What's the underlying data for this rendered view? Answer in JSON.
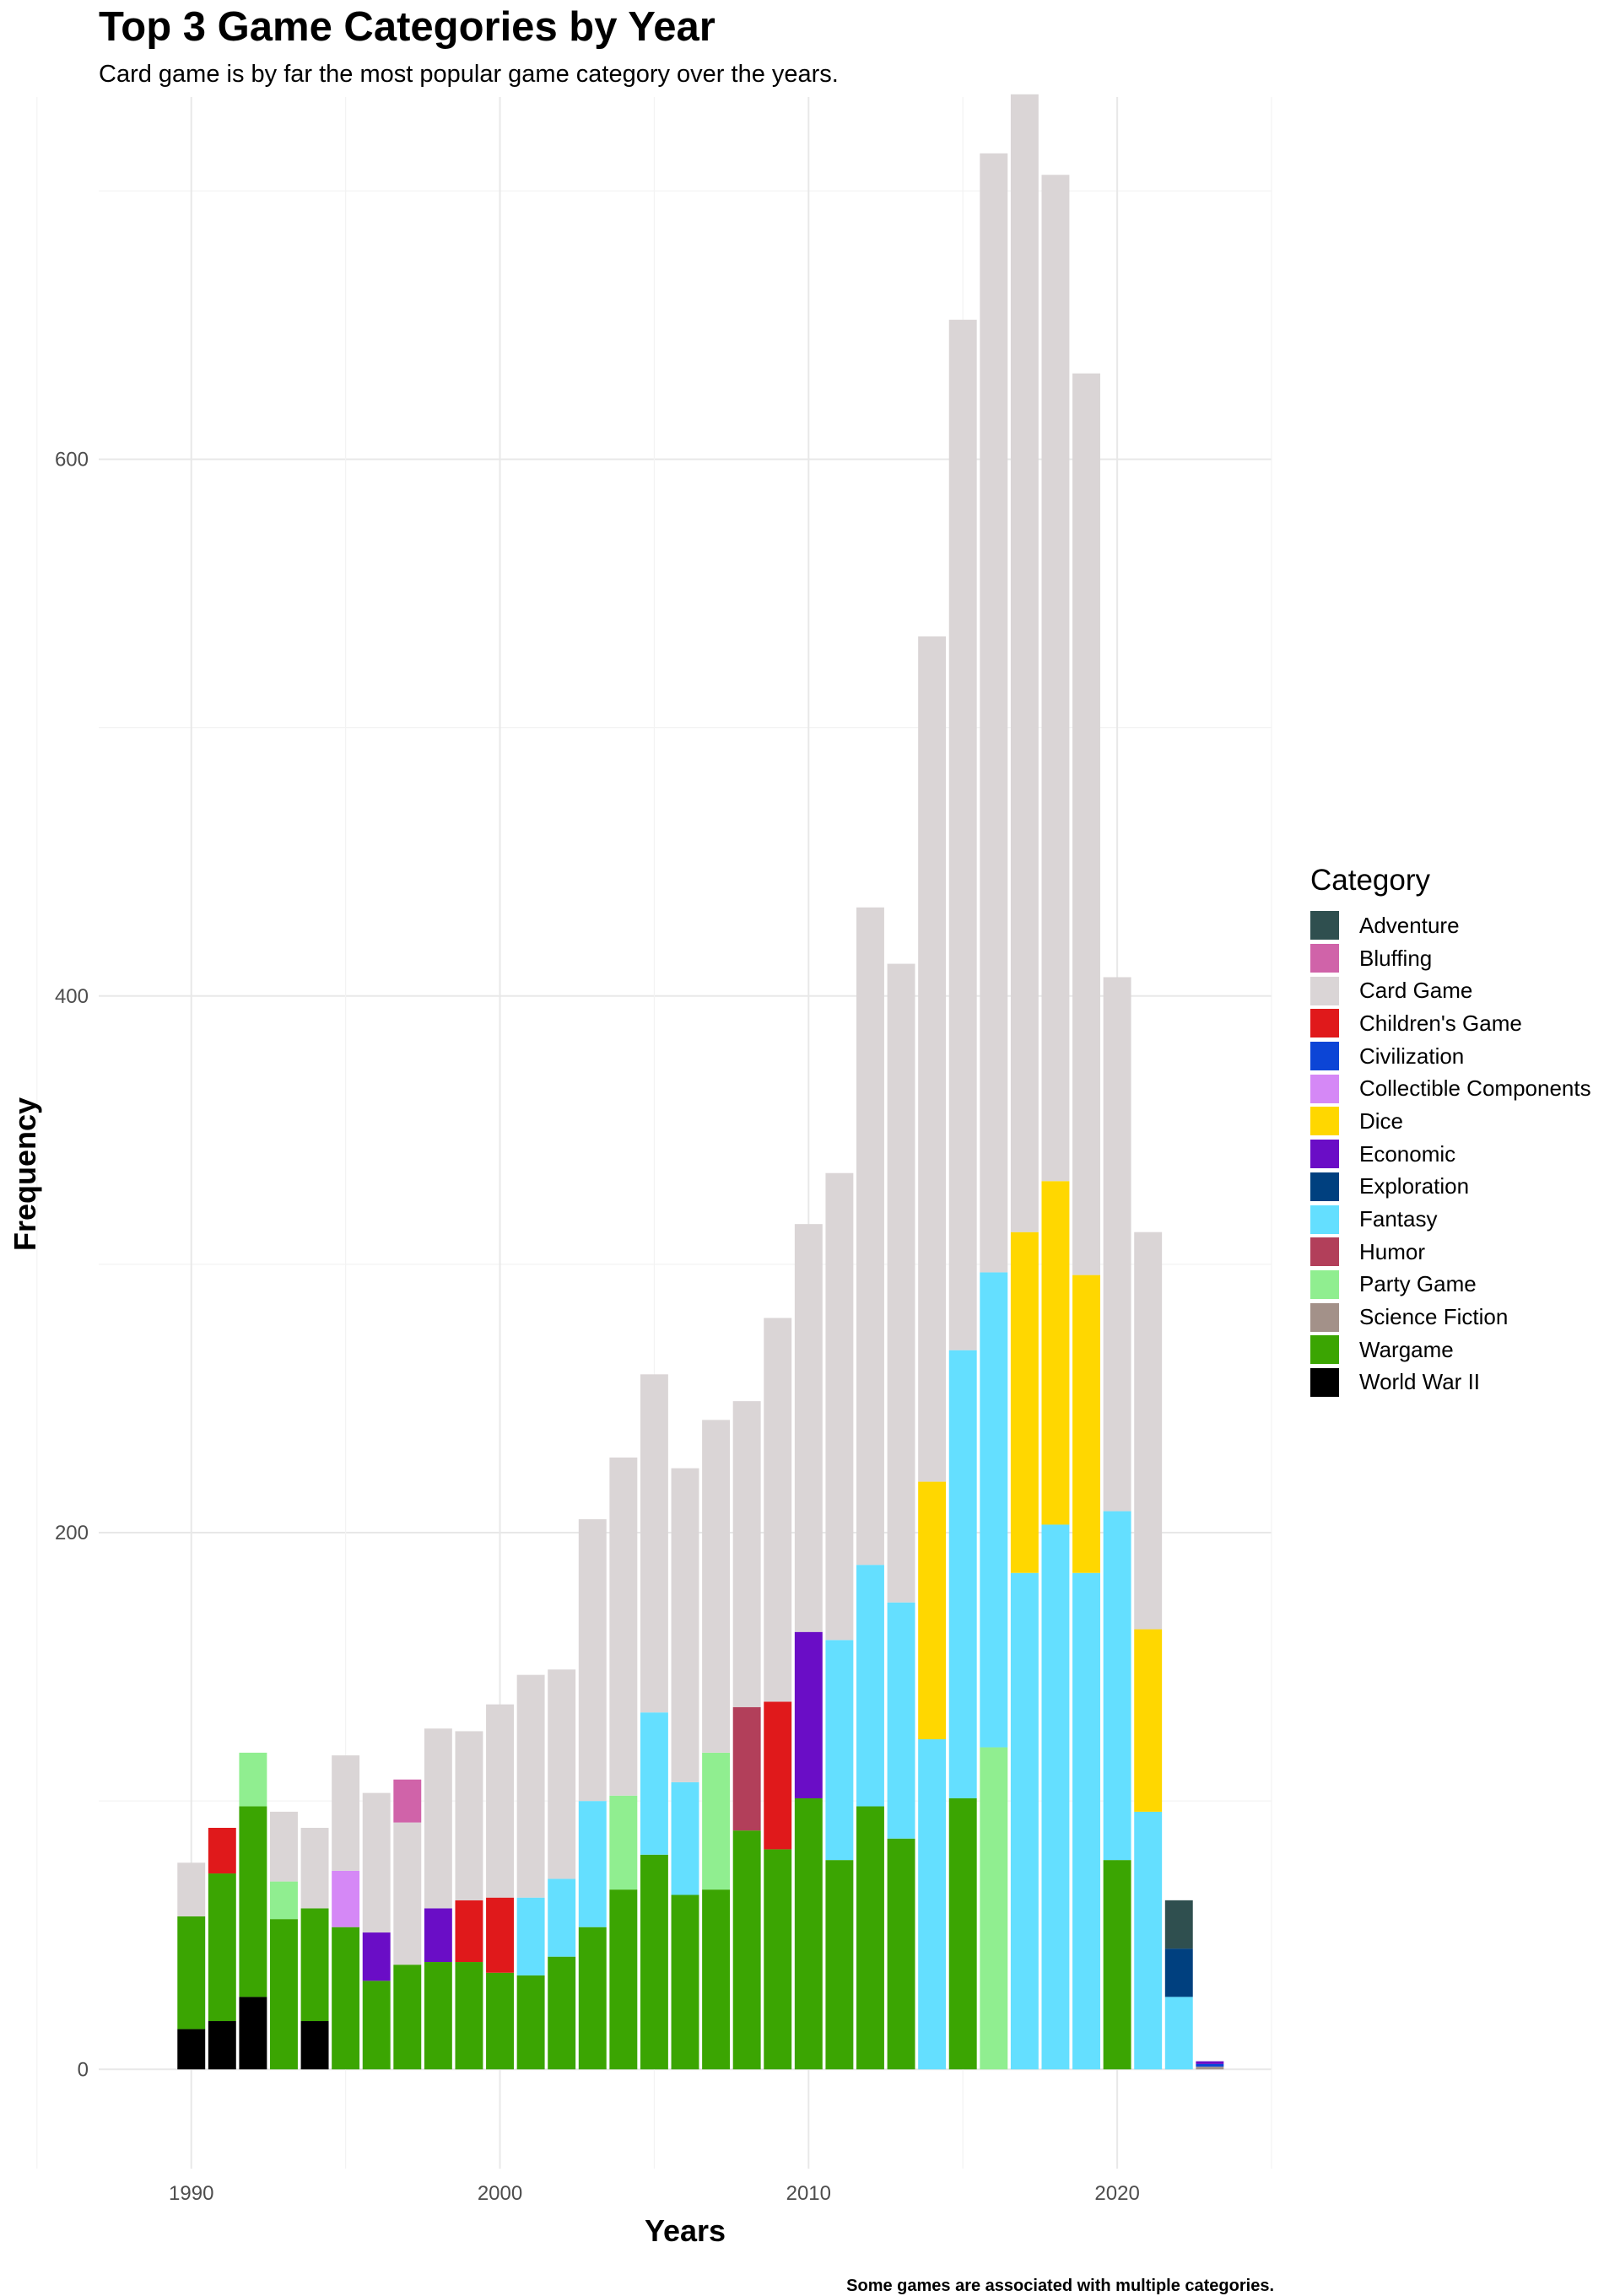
{
  "title": "Top 3 Game Categories by Year",
  "subtitle": "Card game is by far the most popular game category over the years.",
  "caption": "Some games are associated with multiple categories.",
  "chart_data": {
    "type": "bar",
    "stacked": true,
    "xlabel": "Years",
    "ylabel": "Frequency",
    "xlim": [
      1987,
      2025
    ],
    "ylim": [
      -37,
      735
    ],
    "x_ticks": [
      1990,
      2000,
      2010,
      2020
    ],
    "y_ticks": [
      0,
      200,
      400,
      600
    ],
    "grid": true,
    "legend_position": "right",
    "legend_title": "Category",
    "categories_legend": [
      {
        "name": "Adventure",
        "color": "#2F4F4F"
      },
      {
        "name": "Bluffing",
        "color": "#D063A9"
      },
      {
        "name": "Card Game",
        "color": "#DAD5D6"
      },
      {
        "name": "Children's Game",
        "color": "#E0191B"
      },
      {
        "name": "Civilization",
        "color": "#0C45D6"
      },
      {
        "name": "Collectible Components",
        "color": "#D588F6"
      },
      {
        "name": "Dice",
        "color": "#FFD700"
      },
      {
        "name": "Economic",
        "color": "#6A0DC6"
      },
      {
        "name": "Exploration",
        "color": "#00407F"
      },
      {
        "name": "Fantasy",
        "color": "#64DFFF"
      },
      {
        "name": "Humor",
        "color": "#B23F5A"
      },
      {
        "name": "Party Game",
        "color": "#90EE90"
      },
      {
        "name": "Science Fiction",
        "color": "#A39189"
      },
      {
        "name": "Wargame",
        "color": "#3BA502"
      },
      {
        "name": "World War II",
        "color": "#000000"
      }
    ],
    "bars": [
      {
        "year": 1990,
        "segments": [
          {
            "category": "World War II",
            "value": 15
          },
          {
            "category": "Wargame",
            "value": 42
          },
          {
            "category": "Card Game",
            "value": 20
          }
        ]
      },
      {
        "year": 1991,
        "segments": [
          {
            "category": "World War II",
            "value": 18
          },
          {
            "category": "Wargame",
            "value": 55
          },
          {
            "category": "Children's Game",
            "value": 17
          }
        ]
      },
      {
        "year": 1992,
        "segments": [
          {
            "category": "World War II",
            "value": 27
          },
          {
            "category": "Wargame",
            "value": 71
          },
          {
            "category": "Party Game",
            "value": 20
          }
        ]
      },
      {
        "year": 1993,
        "segments": [
          {
            "category": "Wargame",
            "value": 56
          },
          {
            "category": "Party Game",
            "value": 14
          },
          {
            "category": "Card Game",
            "value": 26
          }
        ]
      },
      {
        "year": 1994,
        "segments": [
          {
            "category": "World War II",
            "value": 18
          },
          {
            "category": "Wargame",
            "value": 42
          },
          {
            "category": "Card Game",
            "value": 30
          }
        ]
      },
      {
        "year": 1995,
        "segments": [
          {
            "category": "Wargame",
            "value": 53
          },
          {
            "category": "Collectible Components",
            "value": 21
          },
          {
            "category": "Card Game",
            "value": 43
          }
        ]
      },
      {
        "year": 1996,
        "segments": [
          {
            "category": "Wargame",
            "value": 33
          },
          {
            "category": "Economic",
            "value": 18
          },
          {
            "category": "Card Game",
            "value": 52
          }
        ]
      },
      {
        "year": 1997,
        "segments": [
          {
            "category": "Wargame",
            "value": 39
          },
          {
            "category": "Card Game",
            "value": 53
          },
          {
            "category": "Bluffing",
            "value": 16
          }
        ]
      },
      {
        "year": 1998,
        "segments": [
          {
            "category": "Wargame",
            "value": 40
          },
          {
            "category": "Economic",
            "value": 20
          },
          {
            "category": "Card Game",
            "value": 67
          }
        ]
      },
      {
        "year": 1999,
        "segments": [
          {
            "category": "Wargame",
            "value": 40
          },
          {
            "category": "Children's Game",
            "value": 23
          },
          {
            "category": "Card Game",
            "value": 63
          }
        ]
      },
      {
        "year": 2000,
        "segments": [
          {
            "category": "Wargame",
            "value": 36
          },
          {
            "category": "Children's Game",
            "value": 28
          },
          {
            "category": "Card Game",
            "value": 72
          }
        ]
      },
      {
        "year": 2001,
        "segments": [
          {
            "category": "Wargame",
            "value": 35
          },
          {
            "category": "Fantasy",
            "value": 29
          },
          {
            "category": "Card Game",
            "value": 83
          }
        ]
      },
      {
        "year": 2002,
        "segments": [
          {
            "category": "Wargame",
            "value": 42
          },
          {
            "category": "Fantasy",
            "value": 29
          },
          {
            "category": "Card Game",
            "value": 78
          }
        ]
      },
      {
        "year": 2003,
        "segments": [
          {
            "category": "Wargame",
            "value": 53
          },
          {
            "category": "Fantasy",
            "value": 47
          },
          {
            "category": "Card Game",
            "value": 105
          }
        ]
      },
      {
        "year": 2004,
        "segments": [
          {
            "category": "Wargame",
            "value": 67
          },
          {
            "category": "Party Game",
            "value": 35
          },
          {
            "category": "Card Game",
            "value": 126
          }
        ]
      },
      {
        "year": 2005,
        "segments": [
          {
            "category": "Wargame",
            "value": 80
          },
          {
            "category": "Fantasy",
            "value": 53
          },
          {
            "category": "Card Game",
            "value": 126
          }
        ]
      },
      {
        "year": 2006,
        "segments": [
          {
            "category": "Wargame",
            "value": 65
          },
          {
            "category": "Fantasy",
            "value": 42
          },
          {
            "category": "Card Game",
            "value": 117
          }
        ]
      },
      {
        "year": 2007,
        "segments": [
          {
            "category": "Wargame",
            "value": 67
          },
          {
            "category": "Party Game",
            "value": 51
          },
          {
            "category": "Card Game",
            "value": 124
          }
        ]
      },
      {
        "year": 2008,
        "segments": [
          {
            "category": "Wargame",
            "value": 89
          },
          {
            "category": "Humor",
            "value": 46
          },
          {
            "category": "Card Game",
            "value": 114
          }
        ]
      },
      {
        "year": 2009,
        "segments": [
          {
            "category": "Wargame",
            "value": 82
          },
          {
            "category": "Children's Game",
            "value": 55
          },
          {
            "category": "Card Game",
            "value": 143
          }
        ]
      },
      {
        "year": 2010,
        "segments": [
          {
            "category": "Wargame",
            "value": 101
          },
          {
            "category": "Economic",
            "value": 62
          },
          {
            "category": "Card Game",
            "value": 152
          }
        ]
      },
      {
        "year": 2011,
        "segments": [
          {
            "category": "Wargame",
            "value": 78
          },
          {
            "category": "Fantasy",
            "value": 82
          },
          {
            "category": "Card Game",
            "value": 174
          }
        ]
      },
      {
        "year": 2012,
        "segments": [
          {
            "category": "Wargame",
            "value": 98
          },
          {
            "category": "Fantasy",
            "value": 90
          },
          {
            "category": "Card Game",
            "value": 245
          }
        ]
      },
      {
        "year": 2013,
        "segments": [
          {
            "category": "Wargame",
            "value": 86
          },
          {
            "category": "Fantasy",
            "value": 88
          },
          {
            "category": "Card Game",
            "value": 238
          }
        ]
      },
      {
        "year": 2014,
        "segments": [
          {
            "category": "Fantasy",
            "value": 123
          },
          {
            "category": "Dice",
            "value": 96
          },
          {
            "category": "Card Game",
            "value": 315
          }
        ]
      },
      {
        "year": 2015,
        "segments": [
          {
            "category": "Wargame",
            "value": 101
          },
          {
            "category": "Fantasy",
            "value": 167
          },
          {
            "category": "Card Game",
            "value": 384
          }
        ]
      },
      {
        "year": 2016,
        "segments": [
          {
            "category": "Party Game",
            "value": 120
          },
          {
            "category": "Fantasy",
            "value": 177
          },
          {
            "category": "Card Game",
            "value": 417
          }
        ]
      },
      {
        "year": 2017,
        "segments": [
          {
            "category": "Fantasy",
            "value": 185
          },
          {
            "category": "Dice",
            "value": 127
          },
          {
            "category": "Card Game",
            "value": 424
          }
        ]
      },
      {
        "year": 2018,
        "segments": [
          {
            "category": "Fantasy",
            "value": 203
          },
          {
            "category": "Dice",
            "value": 128
          },
          {
            "category": "Card Game",
            "value": 375
          }
        ]
      },
      {
        "year": 2019,
        "segments": [
          {
            "category": "Fantasy",
            "value": 185
          },
          {
            "category": "Dice",
            "value": 111
          },
          {
            "category": "Card Game",
            "value": 336
          }
        ]
      },
      {
        "year": 2020,
        "segments": [
          {
            "category": "Wargame",
            "value": 78
          },
          {
            "category": "Fantasy",
            "value": 130
          },
          {
            "category": "Card Game",
            "value": 199
          }
        ]
      },
      {
        "year": 2021,
        "segments": [
          {
            "category": "Fantasy",
            "value": 96
          },
          {
            "category": "Dice",
            "value": 68
          },
          {
            "category": "Card Game",
            "value": 148
          }
        ]
      },
      {
        "year": 2022,
        "segments": [
          {
            "category": "Fantasy",
            "value": 27
          },
          {
            "category": "Exploration",
            "value": 18
          },
          {
            "category": "Adventure",
            "value": 18
          }
        ]
      },
      {
        "year": 2023,
        "segments": [
          {
            "category": "Science Fiction",
            "value": 1
          },
          {
            "category": "Civilization",
            "value": 1
          },
          {
            "category": "Economic",
            "value": 1
          }
        ]
      }
    ]
  }
}
